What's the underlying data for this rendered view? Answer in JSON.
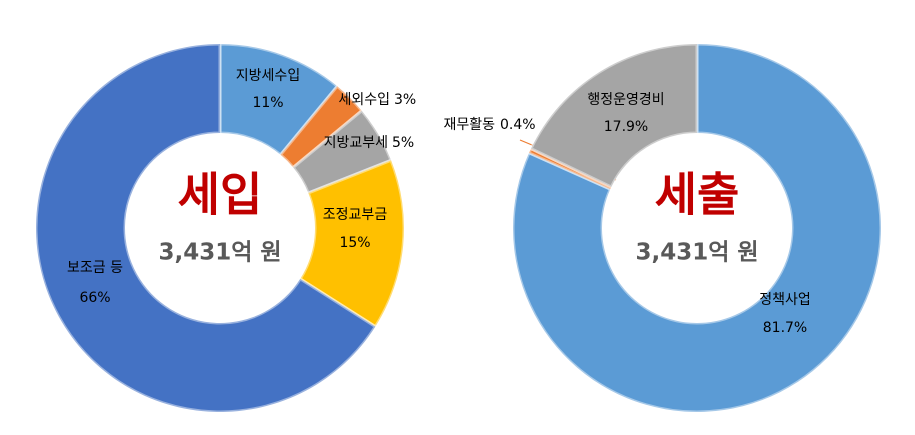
{
  "chart_data": [
    {
      "type": "donut",
      "title": "세입",
      "subtitle": "3,431억 원",
      "categories": [
        "지방세수입",
        "세외수입",
        "지방교부세",
        "조정교부금",
        "보조금 등"
      ],
      "values": [
        11,
        3,
        5,
        15,
        66
      ],
      "value_labels": [
        "11%",
        "3%",
        "5%",
        "15%",
        "66%"
      ],
      "colors": [
        "#5b9bd5",
        "#ed7d31",
        "#a5a5a5",
        "#ffc000",
        "#4472c4"
      ]
    },
    {
      "type": "donut",
      "title": "세출",
      "subtitle": "3,431억 원",
      "categories": [
        "정책사업",
        "재무활동",
        "행정운영경비"
      ],
      "values": [
        81.7,
        0.4,
        17.9
      ],
      "value_labels": [
        "81.7%",
        "0.4%",
        "17.9%"
      ],
      "colors": [
        "#5b9bd5",
        "#ed7d31",
        "#a5a5a5"
      ]
    }
  ]
}
